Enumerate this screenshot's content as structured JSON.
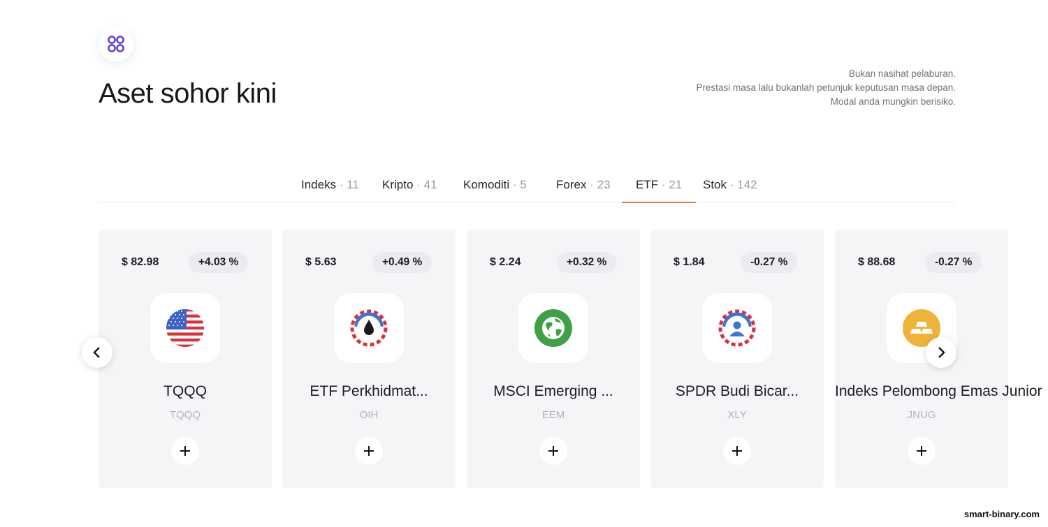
{
  "header": {
    "title": "Aset sohor kini",
    "logo_icon": "four-circles-icon",
    "accent": "#6a3fd6"
  },
  "disclaimer": {
    "line1": "Bukan nasihat pelaburan.",
    "line2": "Prestasi masa lalu bukanlah petunjuk keputusan masa depan.",
    "line3": "Modal anda mungkin berisiko."
  },
  "tabs": [
    {
      "label": "Indeks",
      "count": "11",
      "active": false
    },
    {
      "label": "Kripto",
      "count": "41",
      "active": false
    },
    {
      "label": "Komoditi",
      "count": "5",
      "active": false
    },
    {
      "label": "Forex",
      "count": "23",
      "active": false
    },
    {
      "label": "ETF",
      "count": "21",
      "active": true
    },
    {
      "label": "Stok",
      "count": "142",
      "active": false
    }
  ],
  "tab_separator": "·",
  "active_tab_color": "#e5734d",
  "assets": [
    {
      "price": "$ 82.98",
      "change": "+4.03 %",
      "name": "TQQQ",
      "ticker": "TQQQ",
      "icon": "us-flag-icon"
    },
    {
      "price": "$ 5.63",
      "change": "+0.49 %",
      "name": "ETF Perkhidmat...",
      "ticker": "OIH",
      "icon": "oil-drop-icon"
    },
    {
      "price": "$ 2.24",
      "change": "+0.32 %",
      "name": "MSCI Emerging ...",
      "ticker": "EEM",
      "icon": "globe-icon"
    },
    {
      "price": "$ 1.84",
      "change": "-0.27 %",
      "name": "SPDR Budi Bicar...",
      "ticker": "XLY",
      "icon": "person-icon"
    },
    {
      "price": "$ 88.68",
      "change": "-0.27 %",
      "name": "Indeks Pelombong Emas Junior",
      "ticker": "JNUG",
      "icon": "gold-bars-icon"
    }
  ],
  "add_label": "+",
  "watermark": "smart-binary.com"
}
